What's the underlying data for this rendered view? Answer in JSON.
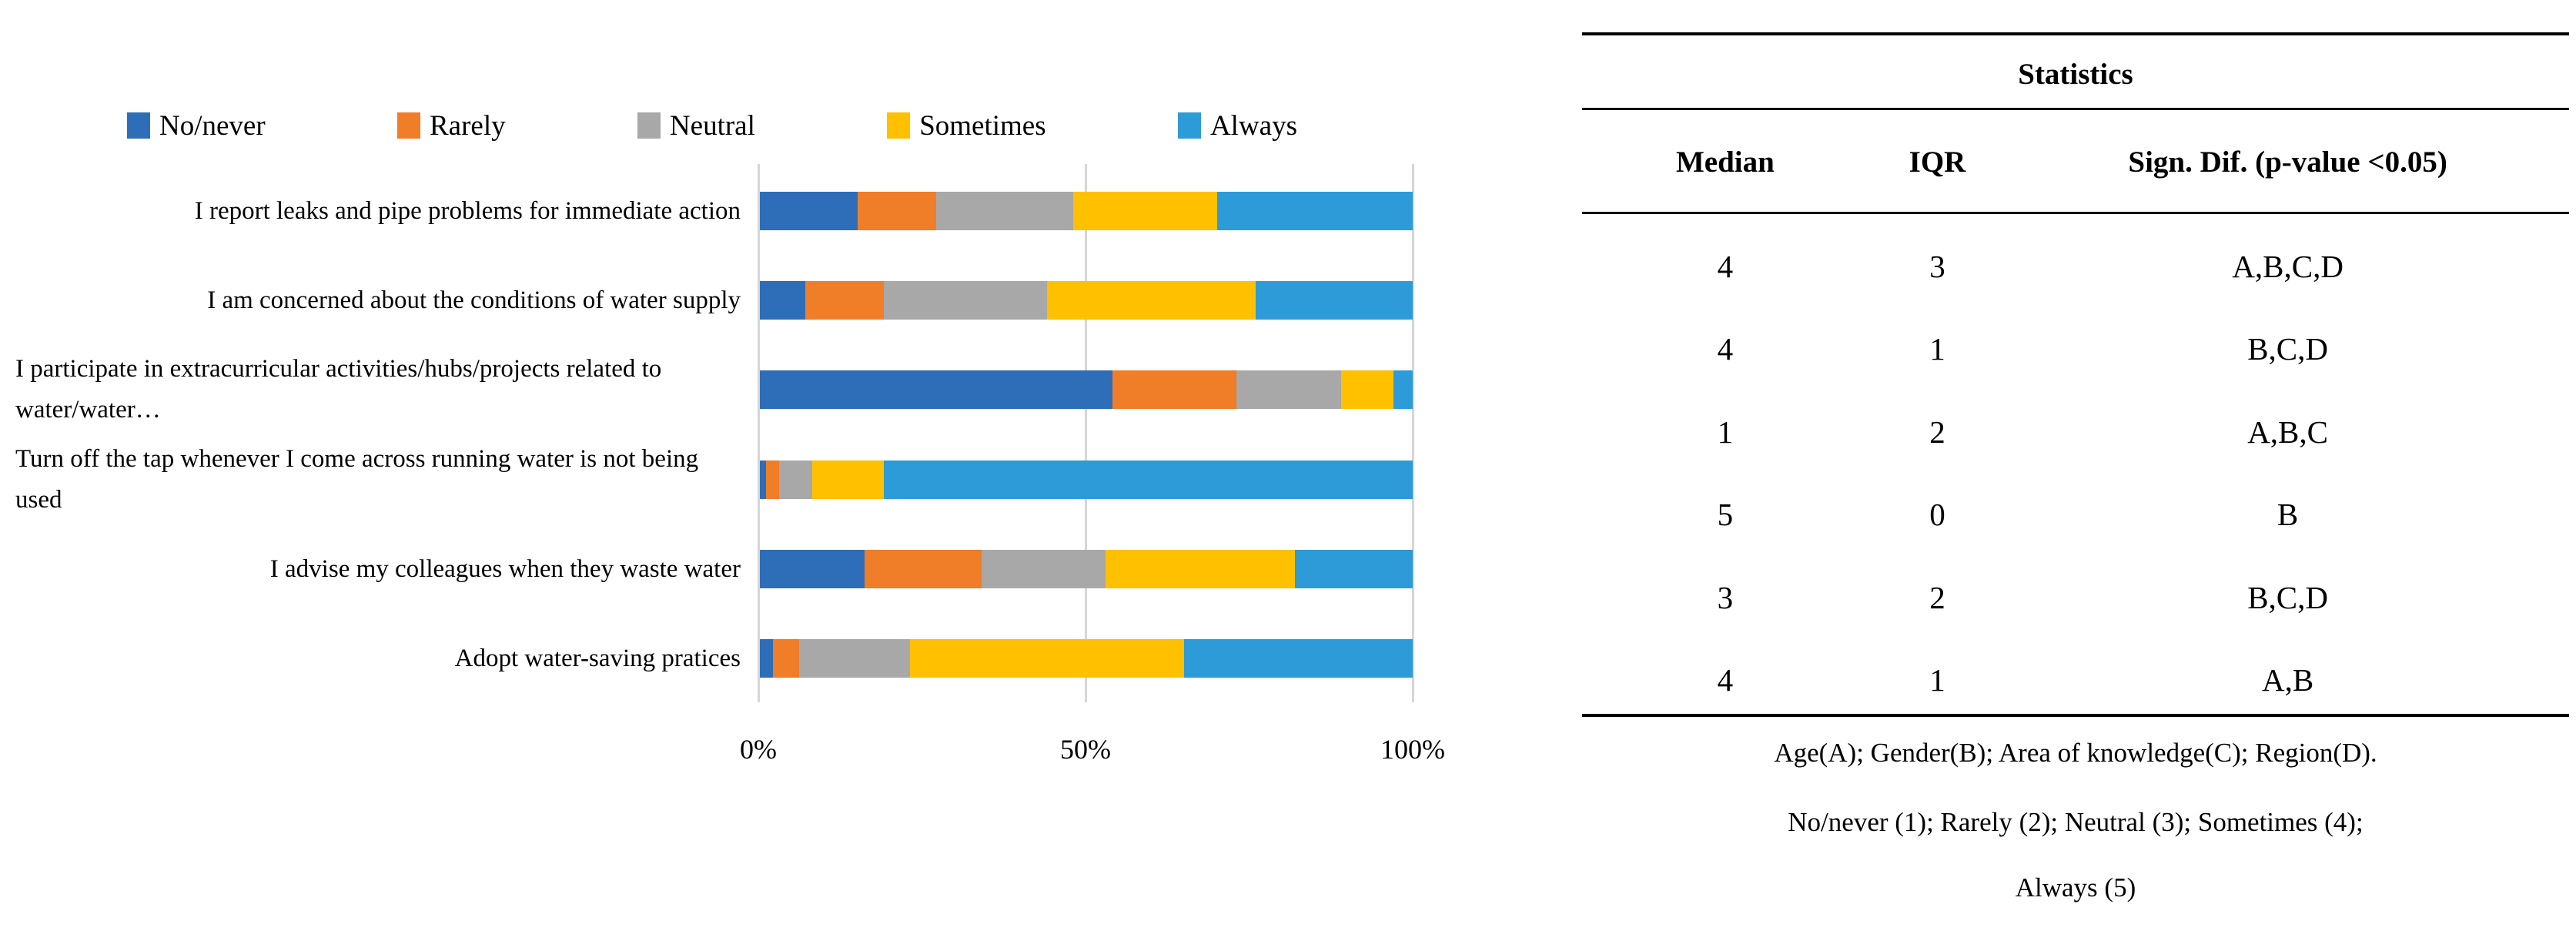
{
  "chart_data": {
    "type": "bar",
    "stacked": true,
    "orientation": "horizontal",
    "unit": "%",
    "xlim": [
      0,
      100
    ],
    "x_ticks": [
      "0%",
      "50%",
      "100%"
    ],
    "legend_position": "top",
    "grid": "vertical gridlines at 0%, 50%, 100%",
    "categories": [
      "I report leaks and pipe problems for immediate\naction",
      "I am concerned about the conditions of water\nsupply",
      "I participate in extracurricular\nactivities/hubs/projects related to water/water…",
      "Turn off the tap whenever I come across running\nwater is not being used",
      "I advise my colleagues when they waste water",
      "Adopt water-saving pratices"
    ],
    "series": [
      {
        "name": "No/never",
        "color": "#2E6EB8",
        "values": [
          15,
          7,
          54,
          1,
          16,
          2
        ]
      },
      {
        "name": "Rarely",
        "color": "#F07D28",
        "values": [
          12,
          12,
          19,
          2,
          18,
          4
        ]
      },
      {
        "name": "Neutral",
        "color": "#A8A8A8",
        "values": [
          21,
          25,
          16,
          5,
          19,
          17
        ]
      },
      {
        "name": "Sometimes",
        "color": "#FFC000",
        "values": [
          22,
          32,
          8,
          11,
          29,
          42
        ]
      },
      {
        "name": "Always",
        "color": "#2D9BD8",
        "values": [
          30,
          24,
          3,
          81,
          18,
          35
        ]
      }
    ]
  },
  "table": {
    "title": "Statistics",
    "columns": [
      "Median",
      "IQR",
      "Sign. Dif. (p-value <0.05)"
    ],
    "rows": [
      {
        "median": "4",
        "iqr": "3",
        "sign_dif": "A,B,C,D"
      },
      {
        "median": "4",
        "iqr": "1",
        "sign_dif": "B,C,D"
      },
      {
        "median": "1",
        "iqr": "2",
        "sign_dif": "A,B,C"
      },
      {
        "median": "5",
        "iqr": "0",
        "sign_dif": "B"
      },
      {
        "median": "3",
        "iqr": "2",
        "sign_dif": "B,C,D"
      },
      {
        "median": "4",
        "iqr": "1",
        "sign_dif": "A,B"
      }
    ],
    "footnotes": [
      "Age(A); Gender(B); Area of knowledge(C); Region(D).",
      "No/never (1); Rarely (2); Neutral (3); Sometimes (4);",
      "Always (5)"
    ]
  },
  "colors": {
    "gridline": "#D6D6D6",
    "table_rule": "#000000",
    "background": "#FFFFFF"
  }
}
